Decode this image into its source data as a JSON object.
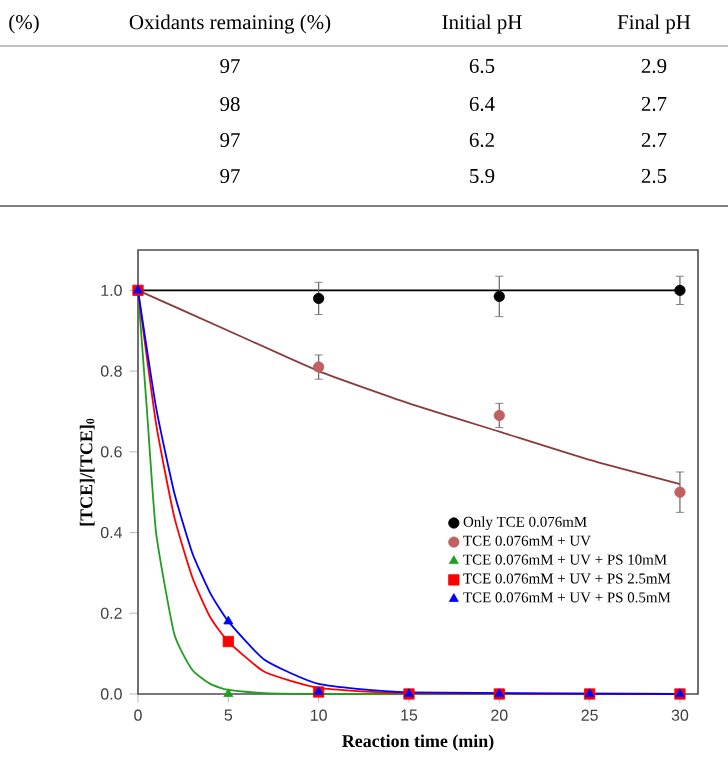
{
  "chart_data": {
    "type": "scatter",
    "xlabel": "Reaction time (min)",
    "ylabel": "[TCE]/[TCE]$_{0}$",
    "annotations": [
      "(%)",
      "Oxidants remaining (%)",
      "Initial pH",
      "Final pH",
      "97",
      "6.5",
      "2.9",
      "98",
      "6.4",
      "2.7",
      "97",
      "6.2",
      "2.7",
      "97",
      "5.9",
      "2.5"
    ],
    "xlim": [
      0,
      31
    ],
    "xticks": [
      0,
      5,
      10,
      15,
      20,
      25,
      30
    ],
    "ylim": [
      0,
      1.1
    ],
    "yticks": [
      {
        "value": 0,
        "label": "0.0"
      },
      {
        "value": 0.2,
        "label": "0.2"
      },
      {
        "value": 0.4,
        "label": "0.4"
      },
      {
        "value": 0.6,
        "label": "0.6"
      },
      {
        "value": 0.8,
        "label": "0.8"
      },
      {
        "value": 1.0,
        "label": "1.0"
      }
    ],
    "grid": false,
    "legend": "right",
    "series": [
      {
        "type": "line",
        "color": "#000000",
        "marker": "none",
        "x": [
          0,
          30
        ],
        "values": [
          1.0,
          1.0
        ]
      },
      {
        "type": "line",
        "color": "#8b3a3a",
        "marker": "none",
        "x": [
          0,
          5,
          10,
          15,
          20,
          25,
          30
        ],
        "values": [
          1.0,
          0.9,
          0.8,
          0.72,
          0.65,
          0.58,
          0.52
        ]
      },
      {
        "type": "line",
        "color": "#1f9e1f",
        "marker": "none",
        "x": [
          0,
          0.5,
          1,
          2,
          3,
          4,
          5,
          7,
          10,
          30
        ],
        "values": [
          1.0,
          0.7,
          0.4,
          0.15,
          0.06,
          0.025,
          0.01,
          0.002,
          0,
          0
        ]
      },
      {
        "type": "line",
        "color": "#ff0000",
        "marker": "none",
        "x": [
          0,
          1,
          2,
          3,
          4,
          5,
          7,
          10,
          15,
          30
        ],
        "values": [
          1.0,
          0.67,
          0.44,
          0.29,
          0.19,
          0.13,
          0.055,
          0.015,
          0.002,
          0
        ]
      },
      {
        "type": "line",
        "color": "#0000ff",
        "marker": "none",
        "x": [
          0,
          1,
          2,
          3,
          4,
          5,
          7,
          10,
          15,
          30
        ],
        "values": [
          1.0,
          0.71,
          0.5,
          0.35,
          0.25,
          0.18,
          0.085,
          0.025,
          0.004,
          0
        ]
      },
      {
        "name": "Only TCE 0.076mM",
        "color": "#000000",
        "marker": "circle",
        "x": [
          10,
          20,
          30
        ],
        "values": [
          0.98,
          0.985,
          1.0
        ],
        "errors": [
          0.04,
          0.05,
          0.035
        ]
      },
      {
        "name": "TCE 0.076mM + UV",
        "color": "#c06060",
        "marker": "circle",
        "x": [
          10,
          20,
          30
        ],
        "values": [
          0.81,
          0.69,
          0.5
        ],
        "errors": [
          0.03,
          0.03,
          0.05
        ]
      },
      {
        "name": "TCE 0.076mM + UV + PS 10mM",
        "color": "#1f9e1f",
        "marker": "triangle",
        "x": [
          5,
          10
        ],
        "values": [
          0,
          0
        ]
      },
      {
        "name": "TCE 0.076mM + UV + PS 2.5mM",
        "color": "#ff0000",
        "marker": "square",
        "x": [
          0,
          5,
          10,
          15,
          20,
          25,
          30
        ],
        "values": [
          1.0,
          0.13,
          0.005,
          0,
          0,
          0,
          0
        ]
      },
      {
        "name": "TCE 0.076mM + UV + PS 0.5mM",
        "color": "#0000ff",
        "marker": "triangle",
        "x": [
          0,
          5,
          10,
          15,
          20,
          25,
          30
        ],
        "values": [
          1.0,
          0.18,
          0.005,
          0,
          0,
          0,
          0
        ]
      }
    ]
  }
}
